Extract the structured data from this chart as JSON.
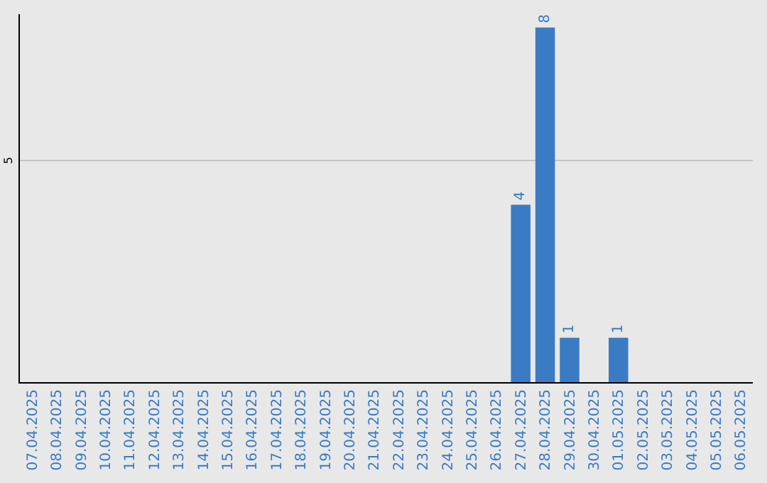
{
  "chart_data": {
    "type": "bar",
    "ylim": [
      0,
      8.3
    ],
    "categories": [
      "07.04.2025",
      "08.04.2025",
      "09.04.2025",
      "10.04.2025",
      "11.04.2025",
      "12.04.2025",
      "13.04.2025",
      "14.04.2025",
      "15.04.2025",
      "16.04.2025",
      "17.04.2025",
      "18.04.2025",
      "19.04.2025",
      "20.04.2025",
      "21.04.2025",
      "22.04.2025",
      "23.04.2025",
      "24.04.2025",
      "25.04.2025",
      "26.04.2025",
      "27.04.2025",
      "28.04.2025",
      "29.04.2025",
      "30.04.2025",
      "01.05.2025",
      "02.05.2025",
      "03.05.2025",
      "04.05.2025",
      "05.05.2025",
      "06.05.2025"
    ],
    "values": [
      null,
      null,
      null,
      null,
      null,
      null,
      null,
      null,
      null,
      null,
      null,
      null,
      null,
      null,
      null,
      null,
      null,
      null,
      null,
      null,
      4,
      8,
      1,
      null,
      1,
      null,
      null,
      null,
      null,
      null
    ],
    "value_labels": [
      null,
      null,
      null,
      null,
      null,
      null,
      null,
      null,
      null,
      null,
      null,
      null,
      null,
      null,
      null,
      null,
      null,
      null,
      null,
      null,
      "4",
      "8",
      "1",
      null,
      "1",
      null,
      null,
      null,
      null,
      null
    ],
    "color": "#3b7bc4",
    "ref_lines": [
      {
        "axis": "y",
        "value": 5,
        "label": "5",
        "color": "#c4c4c4"
      }
    ]
  }
}
